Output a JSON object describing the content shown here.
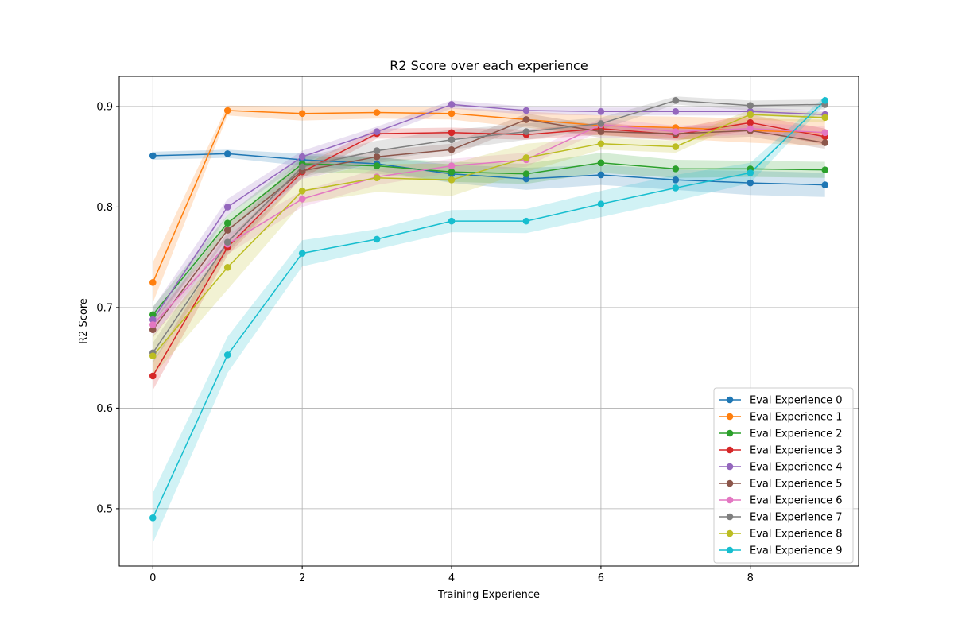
{
  "chart_data": {
    "type": "line",
    "title": "R2 Score over each experience",
    "xlabel": "Training Experience",
    "ylabel": "R2 Score",
    "x": [
      0,
      1,
      2,
      3,
      4,
      5,
      6,
      7,
      8,
      9
    ],
    "xlim": [
      -0.45,
      9.45
    ],
    "ylim": [
      0.443,
      0.93
    ],
    "xticks": [
      0,
      2,
      4,
      6,
      8
    ],
    "yticks": [
      0.5,
      0.6,
      0.7,
      0.8,
      0.9
    ],
    "ytick_labels": [
      "0.5",
      "0.6",
      "0.7",
      "0.8",
      "0.9"
    ],
    "grid": true,
    "legend_position": "lower right",
    "shaded_band": "spread around each series",
    "series": [
      {
        "name": "Eval Experience 0",
        "color": "#1f77b4",
        "values": [
          0.851,
          0.853,
          0.847,
          0.843,
          0.833,
          0.828,
          0.832,
          0.827,
          0.824,
          0.822
        ],
        "band": [
          0.004,
          0.004,
          0.006,
          0.007,
          0.009,
          0.011,
          0.01,
          0.01,
          0.012,
          0.012
        ]
      },
      {
        "name": "Eval Experience 1",
        "color": "#ff7f0e",
        "values": [
          0.725,
          0.896,
          0.893,
          0.894,
          0.893,
          0.887,
          0.881,
          0.879,
          0.876,
          0.874
        ],
        "band": [
          0.02,
          0.005,
          0.007,
          0.006,
          0.006,
          0.008,
          0.01,
          0.011,
          0.012,
          0.013
        ]
      },
      {
        "name": "Eval Experience 2",
        "color": "#2ca02c",
        "values": [
          0.693,
          0.784,
          0.843,
          0.841,
          0.835,
          0.833,
          0.844,
          0.838,
          0.838,
          0.837
        ],
        "band": [
          0.008,
          0.008,
          0.008,
          0.008,
          0.01,
          0.01,
          0.01,
          0.009,
          0.008,
          0.008
        ]
      },
      {
        "name": "Eval Experience 3",
        "color": "#d62728",
        "values": [
          0.632,
          0.76,
          0.835,
          0.873,
          0.874,
          0.872,
          0.878,
          0.872,
          0.884,
          0.87
        ],
        "band": [
          0.014,
          0.008,
          0.006,
          0.005,
          0.005,
          0.005,
          0.006,
          0.006,
          0.008,
          0.008
        ]
      },
      {
        "name": "Eval Experience 4",
        "color": "#9467bd",
        "values": [
          0.688,
          0.8,
          0.85,
          0.875,
          0.902,
          0.896,
          0.895,
          0.895,
          0.895,
          0.892
        ],
        "band": [
          0.012,
          0.008,
          0.006,
          0.005,
          0.004,
          0.004,
          0.004,
          0.004,
          0.004,
          0.004
        ]
      },
      {
        "name": "Eval Experience 5",
        "color": "#8c564b",
        "values": [
          0.678,
          0.777,
          0.836,
          0.85,
          0.857,
          0.887,
          0.875,
          0.873,
          0.876,
          0.864
        ],
        "band": [
          0.008,
          0.008,
          0.008,
          0.006,
          0.006,
          0.006,
          0.006,
          0.006,
          0.006,
          0.006
        ]
      },
      {
        "name": "Eval Experience 6",
        "color": "#e377c2",
        "values": [
          0.683,
          0.763,
          0.808,
          0.83,
          0.841,
          0.847,
          0.882,
          0.875,
          0.878,
          0.874
        ],
        "band": [
          0.01,
          0.01,
          0.008,
          0.008,
          0.007,
          0.007,
          0.006,
          0.006,
          0.006,
          0.006
        ]
      },
      {
        "name": "Eval Experience 7",
        "color": "#7f7f7f",
        "values": [
          0.655,
          0.765,
          0.84,
          0.856,
          0.867,
          0.875,
          0.883,
          0.906,
          0.901,
          0.902
        ],
        "band": [
          0.01,
          0.01,
          0.01,
          0.01,
          0.01,
          0.008,
          0.006,
          0.004,
          0.005,
          0.005
        ]
      },
      {
        "name": "Eval Experience 8",
        "color": "#bcbd22",
        "values": [
          0.652,
          0.74,
          0.816,
          0.829,
          0.827,
          0.849,
          0.863,
          0.86,
          0.892,
          0.889
        ],
        "band": [
          0.02,
          0.022,
          0.012,
          0.014,
          0.016,
          0.014,
          0.006,
          0.006,
          0.005,
          0.005
        ]
      },
      {
        "name": "Eval Experience 9",
        "color": "#17becf",
        "values": [
          0.491,
          0.653,
          0.754,
          0.768,
          0.786,
          0.786,
          0.803,
          0.819,
          0.834,
          0.906
        ],
        "band": [
          0.025,
          0.018,
          0.013,
          0.01,
          0.011,
          0.012,
          0.013,
          0.013,
          0.01,
          0.004
        ]
      }
    ]
  }
}
